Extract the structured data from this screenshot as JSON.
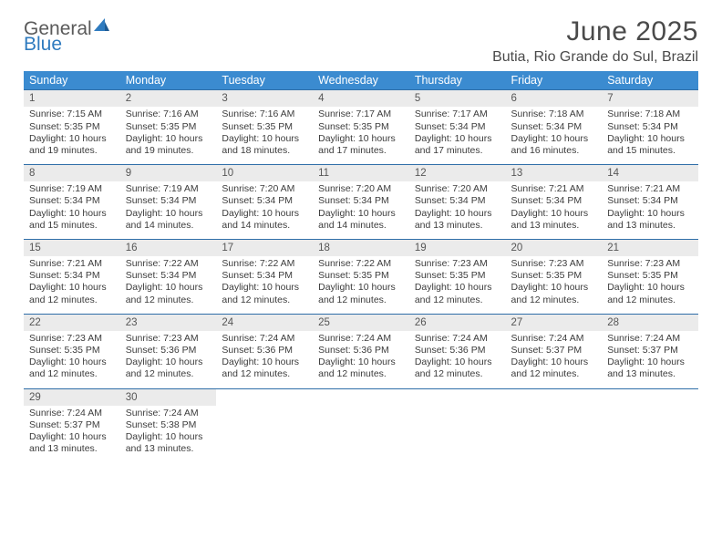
{
  "logo": {
    "word1": "General",
    "word2": "Blue",
    "sail_color": "#2f7bbf"
  },
  "title": {
    "month": "June 2025",
    "location": "Butia, Rio Grande do Sul, Brazil"
  },
  "header_bg": "#3b8bd0",
  "divider_color": "#2f6ea8",
  "daynum_bg": "#ebebeb",
  "day_names": [
    "Sunday",
    "Monday",
    "Tuesday",
    "Wednesday",
    "Thursday",
    "Friday",
    "Saturday"
  ],
  "weeks": [
    [
      {
        "n": "1",
        "sr": "Sunrise: 7:15 AM",
        "ss": "Sunset: 5:35 PM",
        "d1": "Daylight: 10 hours",
        "d2": "and 19 minutes."
      },
      {
        "n": "2",
        "sr": "Sunrise: 7:16 AM",
        "ss": "Sunset: 5:35 PM",
        "d1": "Daylight: 10 hours",
        "d2": "and 19 minutes."
      },
      {
        "n": "3",
        "sr": "Sunrise: 7:16 AM",
        "ss": "Sunset: 5:35 PM",
        "d1": "Daylight: 10 hours",
        "d2": "and 18 minutes."
      },
      {
        "n": "4",
        "sr": "Sunrise: 7:17 AM",
        "ss": "Sunset: 5:35 PM",
        "d1": "Daylight: 10 hours",
        "d2": "and 17 minutes."
      },
      {
        "n": "5",
        "sr": "Sunrise: 7:17 AM",
        "ss": "Sunset: 5:34 PM",
        "d1": "Daylight: 10 hours",
        "d2": "and 17 minutes."
      },
      {
        "n": "6",
        "sr": "Sunrise: 7:18 AM",
        "ss": "Sunset: 5:34 PM",
        "d1": "Daylight: 10 hours",
        "d2": "and 16 minutes."
      },
      {
        "n": "7",
        "sr": "Sunrise: 7:18 AM",
        "ss": "Sunset: 5:34 PM",
        "d1": "Daylight: 10 hours",
        "d2": "and 15 minutes."
      }
    ],
    [
      {
        "n": "8",
        "sr": "Sunrise: 7:19 AM",
        "ss": "Sunset: 5:34 PM",
        "d1": "Daylight: 10 hours",
        "d2": "and 15 minutes."
      },
      {
        "n": "9",
        "sr": "Sunrise: 7:19 AM",
        "ss": "Sunset: 5:34 PM",
        "d1": "Daylight: 10 hours",
        "d2": "and 14 minutes."
      },
      {
        "n": "10",
        "sr": "Sunrise: 7:20 AM",
        "ss": "Sunset: 5:34 PM",
        "d1": "Daylight: 10 hours",
        "d2": "and 14 minutes."
      },
      {
        "n": "11",
        "sr": "Sunrise: 7:20 AM",
        "ss": "Sunset: 5:34 PM",
        "d1": "Daylight: 10 hours",
        "d2": "and 14 minutes."
      },
      {
        "n": "12",
        "sr": "Sunrise: 7:20 AM",
        "ss": "Sunset: 5:34 PM",
        "d1": "Daylight: 10 hours",
        "d2": "and 13 minutes."
      },
      {
        "n": "13",
        "sr": "Sunrise: 7:21 AM",
        "ss": "Sunset: 5:34 PM",
        "d1": "Daylight: 10 hours",
        "d2": "and 13 minutes."
      },
      {
        "n": "14",
        "sr": "Sunrise: 7:21 AM",
        "ss": "Sunset: 5:34 PM",
        "d1": "Daylight: 10 hours",
        "d2": "and 13 minutes."
      }
    ],
    [
      {
        "n": "15",
        "sr": "Sunrise: 7:21 AM",
        "ss": "Sunset: 5:34 PM",
        "d1": "Daylight: 10 hours",
        "d2": "and 12 minutes."
      },
      {
        "n": "16",
        "sr": "Sunrise: 7:22 AM",
        "ss": "Sunset: 5:34 PM",
        "d1": "Daylight: 10 hours",
        "d2": "and 12 minutes."
      },
      {
        "n": "17",
        "sr": "Sunrise: 7:22 AM",
        "ss": "Sunset: 5:34 PM",
        "d1": "Daylight: 10 hours",
        "d2": "and 12 minutes."
      },
      {
        "n": "18",
        "sr": "Sunrise: 7:22 AM",
        "ss": "Sunset: 5:35 PM",
        "d1": "Daylight: 10 hours",
        "d2": "and 12 minutes."
      },
      {
        "n": "19",
        "sr": "Sunrise: 7:23 AM",
        "ss": "Sunset: 5:35 PM",
        "d1": "Daylight: 10 hours",
        "d2": "and 12 minutes."
      },
      {
        "n": "20",
        "sr": "Sunrise: 7:23 AM",
        "ss": "Sunset: 5:35 PM",
        "d1": "Daylight: 10 hours",
        "d2": "and 12 minutes."
      },
      {
        "n": "21",
        "sr": "Sunrise: 7:23 AM",
        "ss": "Sunset: 5:35 PM",
        "d1": "Daylight: 10 hours",
        "d2": "and 12 minutes."
      }
    ],
    [
      {
        "n": "22",
        "sr": "Sunrise: 7:23 AM",
        "ss": "Sunset: 5:35 PM",
        "d1": "Daylight: 10 hours",
        "d2": "and 12 minutes."
      },
      {
        "n": "23",
        "sr": "Sunrise: 7:23 AM",
        "ss": "Sunset: 5:36 PM",
        "d1": "Daylight: 10 hours",
        "d2": "and 12 minutes."
      },
      {
        "n": "24",
        "sr": "Sunrise: 7:24 AM",
        "ss": "Sunset: 5:36 PM",
        "d1": "Daylight: 10 hours",
        "d2": "and 12 minutes."
      },
      {
        "n": "25",
        "sr": "Sunrise: 7:24 AM",
        "ss": "Sunset: 5:36 PM",
        "d1": "Daylight: 10 hours",
        "d2": "and 12 minutes."
      },
      {
        "n": "26",
        "sr": "Sunrise: 7:24 AM",
        "ss": "Sunset: 5:36 PM",
        "d1": "Daylight: 10 hours",
        "d2": "and 12 minutes."
      },
      {
        "n": "27",
        "sr": "Sunrise: 7:24 AM",
        "ss": "Sunset: 5:37 PM",
        "d1": "Daylight: 10 hours",
        "d2": "and 12 minutes."
      },
      {
        "n": "28",
        "sr": "Sunrise: 7:24 AM",
        "ss": "Sunset: 5:37 PM",
        "d1": "Daylight: 10 hours",
        "d2": "and 13 minutes."
      }
    ],
    [
      {
        "n": "29",
        "sr": "Sunrise: 7:24 AM",
        "ss": "Sunset: 5:37 PM",
        "d1": "Daylight: 10 hours",
        "d2": "and 13 minutes."
      },
      {
        "n": "30",
        "sr": "Sunrise: 7:24 AM",
        "ss": "Sunset: 5:38 PM",
        "d1": "Daylight: 10 hours",
        "d2": "and 13 minutes."
      },
      null,
      null,
      null,
      null,
      null
    ]
  ]
}
